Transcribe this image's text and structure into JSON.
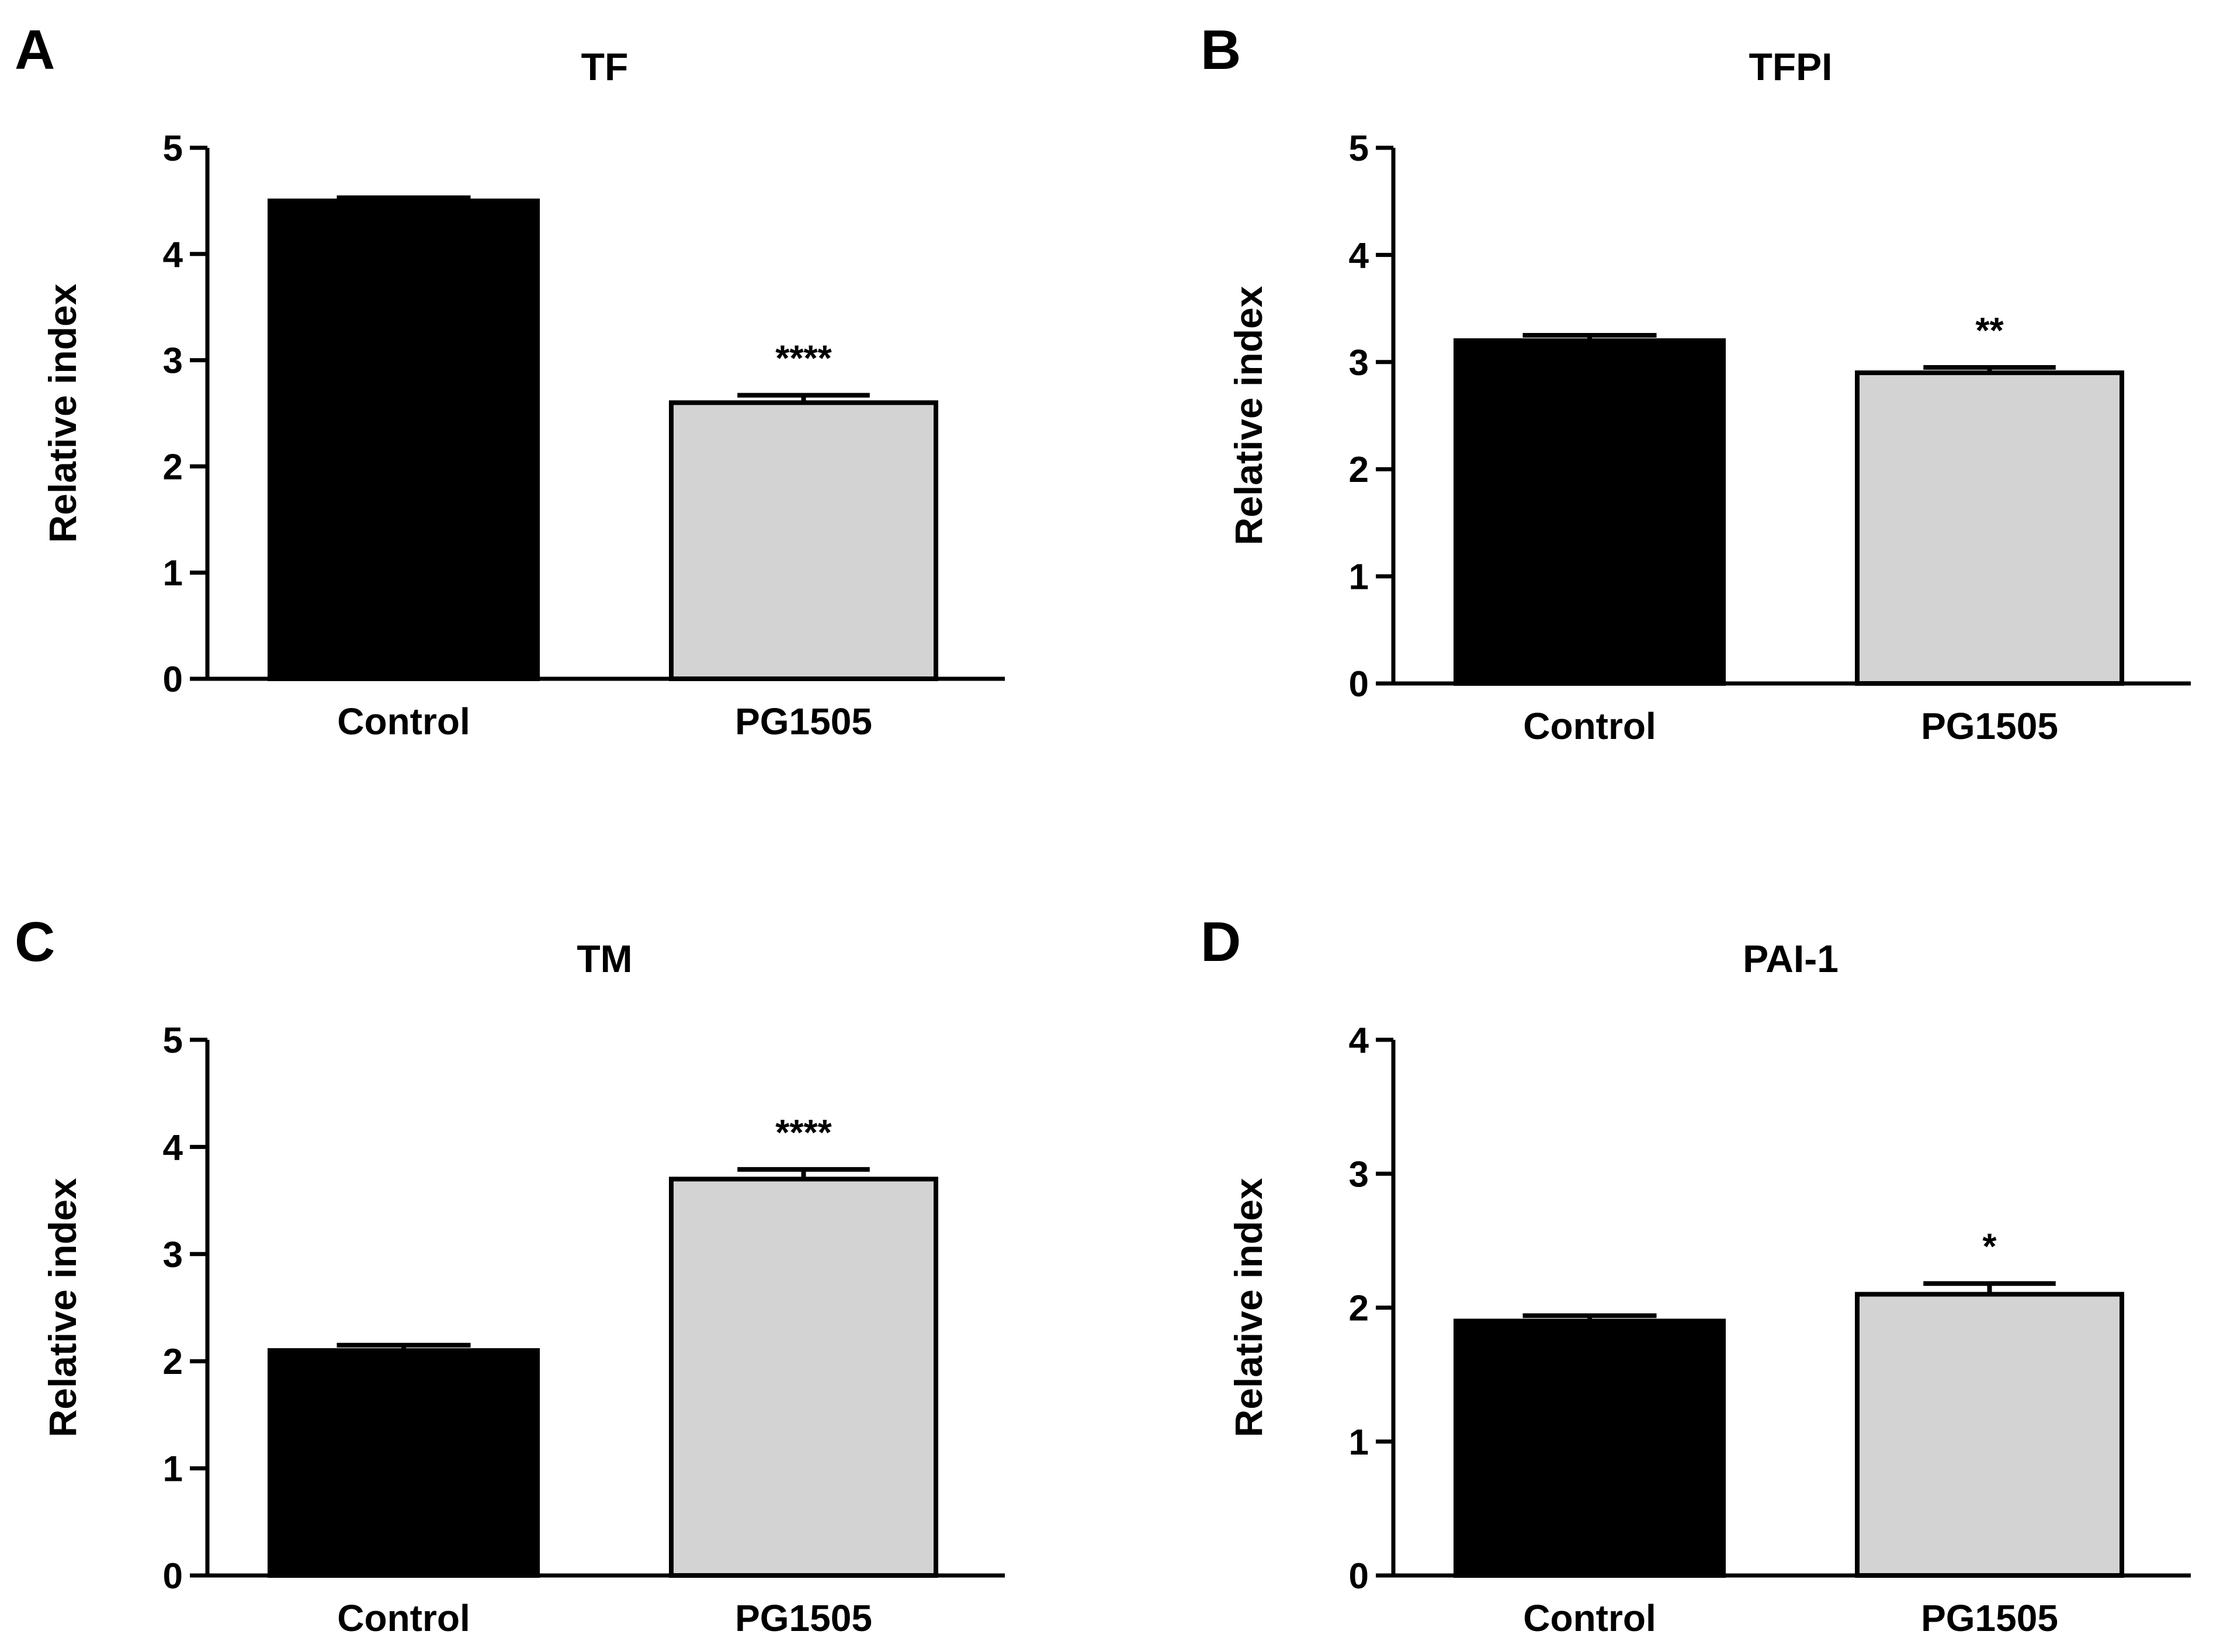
{
  "chart_data": [
    {
      "type": "bar",
      "panel_label": "A",
      "title": "TF",
      "xlabel": "",
      "ylabel": "Relative index",
      "categories": [
        "Control",
        "PG1505"
      ],
      "values": [
        4.5,
        2.6
      ],
      "errors": [
        0.03,
        0.07
      ],
      "significance": [
        "",
        "****"
      ],
      "ylim": [
        0,
        5
      ],
      "yticks": [
        "0",
        "1",
        "2",
        "3",
        "4",
        "5"
      ],
      "grid": false
    },
    {
      "type": "bar",
      "panel_label": "B",
      "title": "TFPI",
      "xlabel": "",
      "ylabel": "Relative index",
      "categories": [
        "Control",
        "PG1505"
      ],
      "values": [
        3.2,
        2.9
      ],
      "errors": [
        0.05,
        0.05
      ],
      "significance": [
        "",
        "**"
      ],
      "ylim": [
        0,
        5
      ],
      "yticks": [
        "0",
        "1",
        "2",
        "3",
        "4",
        "5"
      ],
      "grid": false
    },
    {
      "type": "bar",
      "panel_label": "C",
      "title": "TM",
      "xlabel": "",
      "ylabel": "Relative index",
      "categories": [
        "Control",
        "PG1505"
      ],
      "values": [
        2.1,
        3.7
      ],
      "errors": [
        0.05,
        0.09
      ],
      "significance": [
        "",
        "****"
      ],
      "ylim": [
        0,
        5
      ],
      "yticks": [
        "0",
        "1",
        "2",
        "3",
        "4",
        "5"
      ],
      "grid": false
    },
    {
      "type": "bar",
      "panel_label": "D",
      "title": "PAI-1",
      "xlabel": "",
      "ylabel": "Relative index",
      "categories": [
        "Control",
        "PG1505"
      ],
      "values": [
        1.9,
        2.1
      ],
      "errors": [
        0.04,
        0.08
      ],
      "significance": [
        "",
        "*"
      ],
      "ylim": [
        0,
        4
      ],
      "yticks": [
        "0",
        "1",
        "2",
        "3",
        "4"
      ],
      "grid": false
    }
  ],
  "colors": {
    "control_bar": "#000000",
    "treatment_bar": "#d3d3d3",
    "axis": "#000000"
  }
}
